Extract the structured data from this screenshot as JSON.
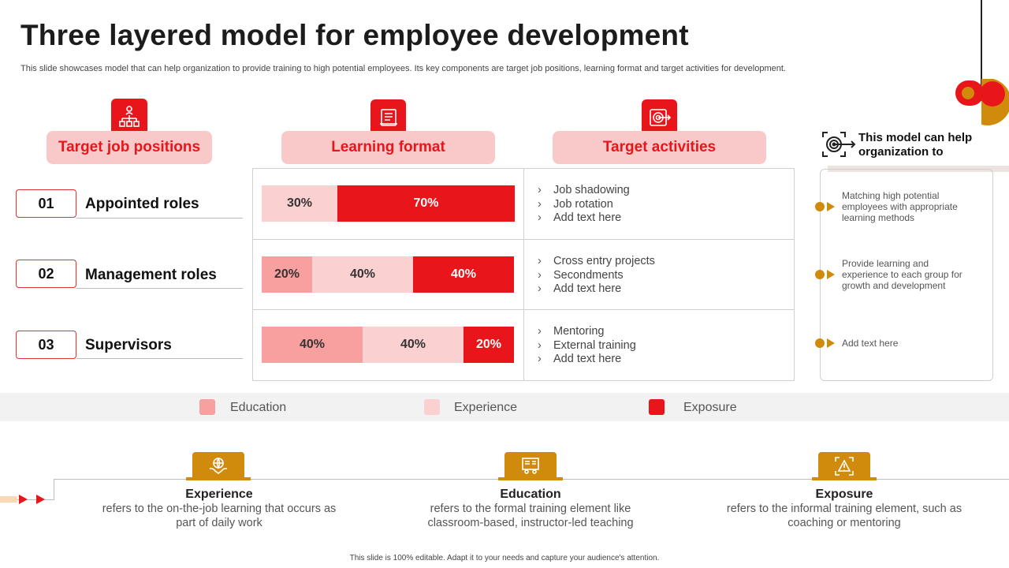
{
  "title": "Three layered model for employee development",
  "subtitle": "This slide showcases model that can help organization to provide training to high potential employees. Its key components are target job positions, learning format and target activities for development.",
  "headers": {
    "target_job": "Target job positions",
    "learning_format": "Learning format",
    "target_activities": "Target activities"
  },
  "roles": [
    {
      "num": "01",
      "label": "Appointed roles"
    },
    {
      "num": "02",
      "label": "Management roles"
    },
    {
      "num": "03",
      "label": "Supervisors"
    }
  ],
  "bars": [
    {
      "education": null,
      "experience": "30%",
      "exposure": "70%"
    },
    {
      "education": "20%",
      "experience": "40%",
      "exposure": "40%"
    },
    {
      "education": "40%",
      "experience": "40%",
      "exposure": "20%"
    }
  ],
  "bar_values": [
    {
      "education": 0,
      "experience": 30,
      "exposure": 70
    },
    {
      "education": 20,
      "experience": 40,
      "exposure": 40
    },
    {
      "education": 40,
      "experience": 40,
      "exposure": 20
    }
  ],
  "activities": [
    [
      "Job shadowing",
      "Job rotation",
      "Add text here"
    ],
    [
      "Cross entry projects",
      "Secondments",
      "Add text here"
    ],
    [
      "Mentoring",
      "External training",
      "Add text here"
    ]
  ],
  "right_panel": {
    "heading": "This model can help organization to",
    "items": [
      "Matching high potential employees with appropriate learning methods",
      "Provide learning and experience to each group for growth and development",
      "Add text here"
    ]
  },
  "legend": {
    "education": "Education",
    "experience": "Experience",
    "exposure": "Exposure"
  },
  "bottom": [
    {
      "heading": "Experience",
      "desc": "refers to the on-the-job learning that occurs as part of daily work"
    },
    {
      "heading": "Education",
      "desc": "refers to the formal training element like classroom-based, instructor-led teaching"
    },
    {
      "heading": "Exposure",
      "desc": "refers to the informal training element, such as coaching or mentoring"
    }
  ],
  "footer": "This slide is 100% editable. Adapt it to your needs and capture your audience's attention.",
  "colors": {
    "accent_red": "#e8161a",
    "pill_pink": "#f9c9c9",
    "education": "#f7a09f",
    "experience": "#fbd0d0",
    "exposure": "#e8161a",
    "gold": "#d08b0c"
  },
  "icons": {
    "target_job": "org-chart-icon",
    "learning_format": "document-icon",
    "target_activities": "target-icon",
    "right_panel": "target-arrow-icon",
    "experience": "hands-globe-icon",
    "education": "presentation-board-icon",
    "exposure": "warning-frame-icon"
  }
}
